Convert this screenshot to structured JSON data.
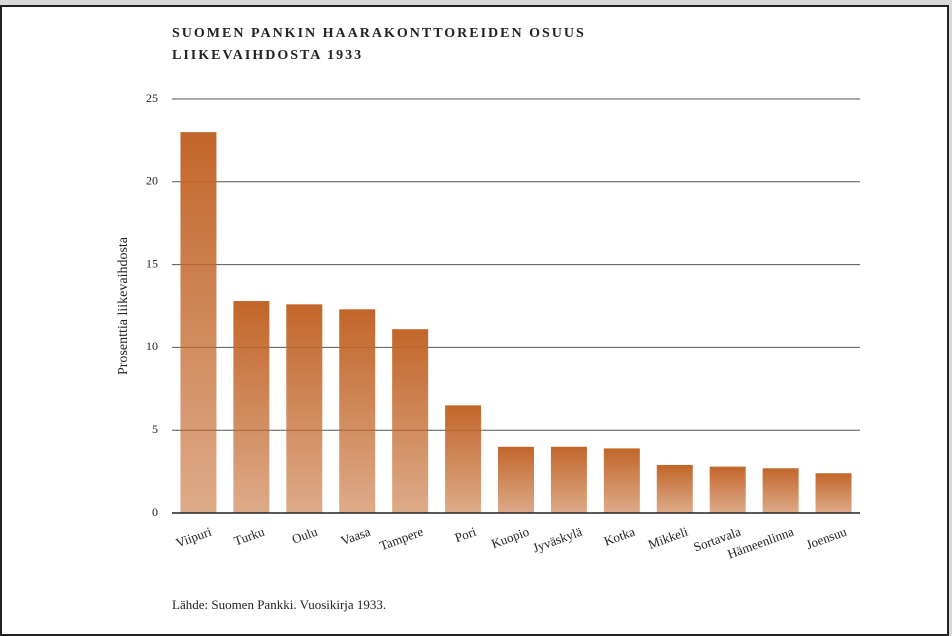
{
  "chart_data": {
    "type": "bar",
    "title": [
      "SUOMEN PANKIN HAARAKONTTOREIDEN OSUUS",
      "LIIKEVAIHDOSTA 1933"
    ],
    "y_label": "Prosenttia liikevaihdosta",
    "source": "Lähde: Suomen Pankki. Vuosikirja 1933.",
    "categories": [
      "Viipuri",
      "Turku",
      "Oulu",
      "Vaasa",
      "Tampere",
      "Pori",
      "Kuopio",
      "Jyväskylä",
      "Kotka",
      "Mikkeli",
      "Sortavala",
      "Hämeenlinna",
      "Joensuu"
    ],
    "values": [
      23.0,
      12.8,
      12.6,
      12.3,
      11.1,
      6.5,
      4.0,
      4.0,
      3.9,
      2.9,
      2.8,
      2.7,
      2.4
    ],
    "color": "#c2662a",
    "ylim": [
      0,
      25
    ],
    "yticks": [
      0,
      5,
      10,
      15,
      20,
      25
    ],
    "grid": true
  }
}
